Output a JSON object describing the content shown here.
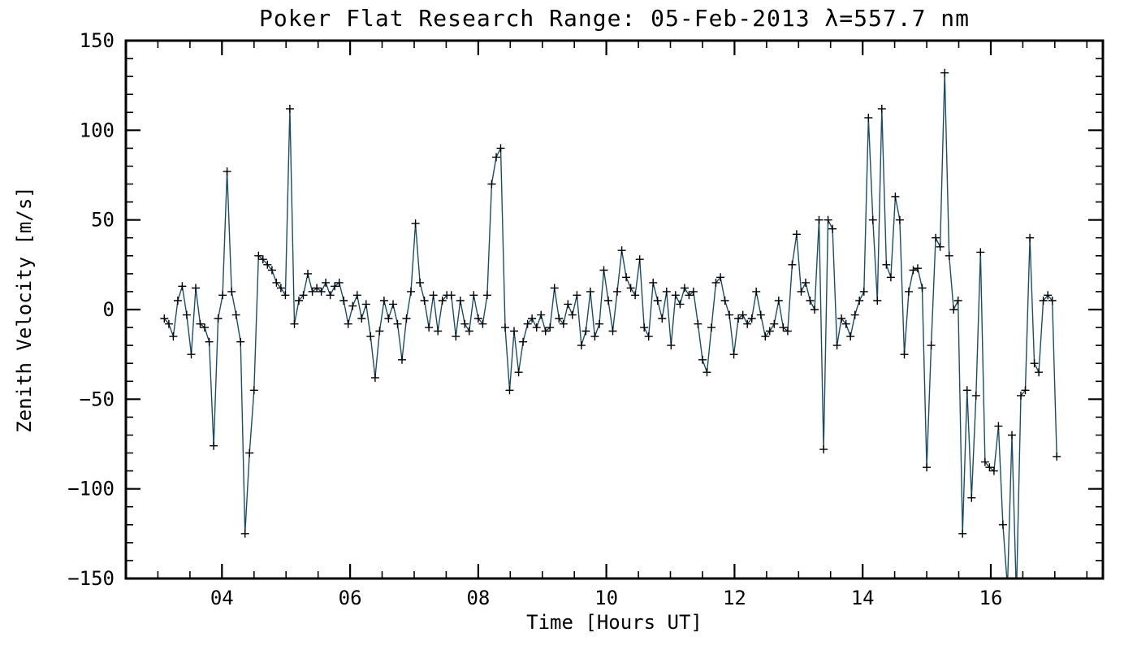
{
  "page": {
    "background": "#ffffff"
  },
  "chart_data": {
    "type": "line",
    "title": "Poker Flat Research Range: 05-Feb-2013 λ=557.7 nm",
    "xlabel": "Time [Hours UT]",
    "ylabel": "Zenith Velocity [m/s]",
    "xlim": [
      2.5,
      17.75
    ],
    "ylim": [
      -150,
      150
    ],
    "grid": false,
    "legend": "none",
    "xticks": {
      "major_values": [
        4,
        6,
        8,
        10,
        12,
        14,
        16
      ],
      "major_labels": [
        "04",
        "06",
        "08",
        "10",
        "12",
        "14",
        "16"
      ],
      "minor_step": 0.5
    },
    "yticks": {
      "major_values": [
        -150,
        -100,
        -50,
        0,
        50,
        100,
        150
      ],
      "major_labels": [
        "−150",
        "−100",
        "−50",
        "0",
        "50",
        "100",
        "150"
      ],
      "minor_step": 10
    },
    "line_color": "#1c4e63",
    "marker": "plus",
    "marker_color": "#000000",
    "series": [
      {
        "name": "zenith-velocity",
        "x_start": 3.1,
        "x_step": 0.07,
        "y": [
          -5,
          -8,
          -15,
          5,
          13,
          -3,
          -25,
          12,
          -8,
          -10,
          -18,
          -76,
          -5,
          8,
          77,
          10,
          -3,
          -18,
          -125,
          -80,
          -45,
          30,
          28,
          25,
          22,
          15,
          12,
          8,
          112,
          -8,
          5,
          8,
          20,
          10,
          12,
          10,
          15,
          8,
          13,
          15,
          5,
          -8,
          2,
          8,
          -5,
          3,
          -15,
          -38,
          -12,
          5,
          -5,
          3,
          -8,
          -28,
          -5,
          10,
          48,
          15,
          5,
          -10,
          8,
          -12,
          5,
          8,
          8,
          -15,
          5,
          -8,
          -12,
          8,
          -5,
          -8,
          8,
          70,
          85,
          90,
          -10,
          -45,
          -12,
          -35,
          -18,
          -8,
          -5,
          -10,
          -3,
          -12,
          -10,
          12,
          -5,
          -8,
          3,
          -3,
          8,
          -20,
          -12,
          10,
          -15,
          -8,
          22,
          5,
          -12,
          10,
          33,
          18,
          12,
          8,
          28,
          -10,
          -15,
          15,
          5,
          -5,
          10,
          -20,
          8,
          3,
          12,
          8,
          10,
          -8,
          -28,
          -35,
          -10,
          15,
          18,
          5,
          -3,
          -25,
          -5,
          -3,
          -8,
          -5,
          10,
          -3,
          -15,
          -12,
          -8,
          5,
          -10,
          -12,
          25,
          42,
          10,
          15,
          5,
          0,
          50,
          -78,
          50,
          45,
          -20,
          -5,
          -8,
          -15,
          -3,
          5,
          10,
          107,
          50,
          5,
          112,
          25,
          18,
          63,
          50,
          -25,
          10,
          22,
          23,
          12,
          -88,
          -20,
          40,
          35,
          132,
          30,
          0,
          5,
          -125,
          -45,
          -105,
          -48,
          32,
          -85,
          -88,
          -90,
          -65,
          -120,
          -155,
          -70,
          -160,
          -48,
          -45,
          40,
          -30,
          -35,
          5,
          8,
          5,
          -82
        ]
      }
    ]
  }
}
